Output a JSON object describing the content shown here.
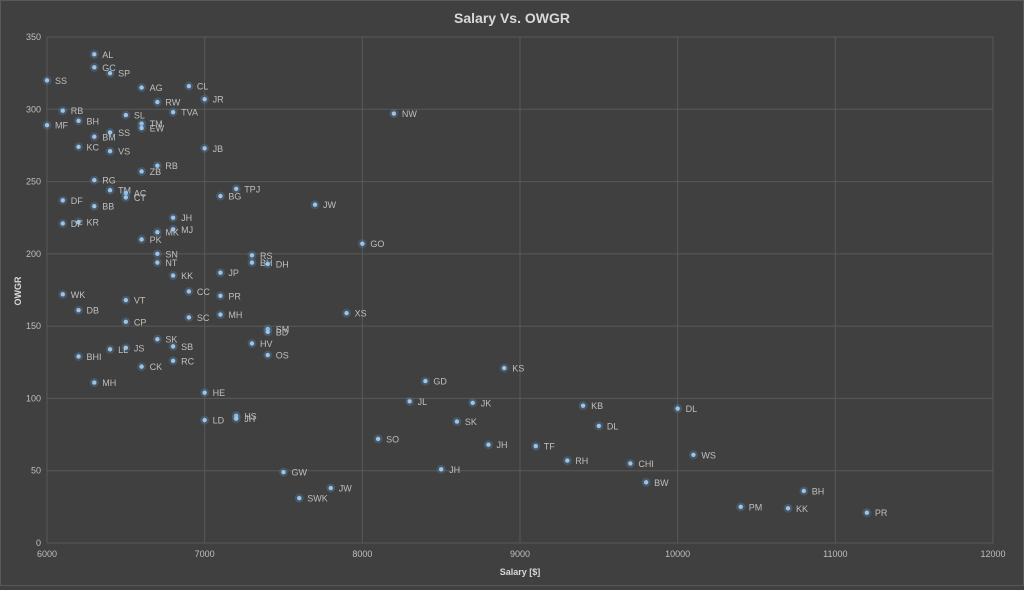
{
  "chart_data": {
    "type": "scatter",
    "title": "Salary Vs. OWGR",
    "xlabel": "Salary [$]",
    "ylabel": "OWGR",
    "xlim": [
      6000,
      12000
    ],
    "ylim": [
      0,
      350
    ],
    "xticks": [
      6000,
      7000,
      8000,
      9000,
      10000,
      11000,
      12000
    ],
    "yticks": [
      0,
      50,
      100,
      150,
      200,
      250,
      300,
      350
    ],
    "grid": true,
    "marker_color": "#9dc3e6",
    "points": [
      {
        "label": "AL",
        "x": 6300,
        "y": 338
      },
      {
        "label": "GC",
        "x": 6300,
        "y": 329
      },
      {
        "label": "SP",
        "x": 6400,
        "y": 325
      },
      {
        "label": "SS",
        "x": 6000,
        "y": 320
      },
      {
        "label": "AG",
        "x": 6600,
        "y": 315
      },
      {
        "label": "CL",
        "x": 6900,
        "y": 316
      },
      {
        "label": "JR",
        "x": 7000,
        "y": 307
      },
      {
        "label": "RW",
        "x": 6700,
        "y": 305
      },
      {
        "label": "RB",
        "x": 6100,
        "y": 299
      },
      {
        "label": "TVA",
        "x": 6800,
        "y": 298
      },
      {
        "label": "NW",
        "x": 8200,
        "y": 297
      },
      {
        "label": "SL",
        "x": 6500,
        "y": 296
      },
      {
        "label": "BH",
        "x": 6200,
        "y": 292
      },
      {
        "label": "MF",
        "x": 6000,
        "y": 289
      },
      {
        "label": "TM",
        "x": 6600,
        "y": 290
      },
      {
        "label": "EW",
        "x": 6600,
        "y": 287
      },
      {
        "label": "SS",
        "x": 6400,
        "y": 284
      },
      {
        "label": "BM",
        "x": 6300,
        "y": 281
      },
      {
        "label": "KC",
        "x": 6200,
        "y": 274
      },
      {
        "label": "JB",
        "x": 7000,
        "y": 273
      },
      {
        "label": "VS",
        "x": 6400,
        "y": 271
      },
      {
        "label": "RB",
        "x": 6700,
        "y": 261
      },
      {
        "label": "ZB",
        "x": 6600,
        "y": 257
      },
      {
        "label": "RG",
        "x": 6300,
        "y": 251
      },
      {
        "label": "TPJ",
        "x": 7200,
        "y": 245
      },
      {
        "label": "TM",
        "x": 6400,
        "y": 244
      },
      {
        "label": "AC",
        "x": 6500,
        "y": 242
      },
      {
        "label": "BG",
        "x": 7100,
        "y": 240
      },
      {
        "label": "CT",
        "x": 6500,
        "y": 239
      },
      {
        "label": "DF",
        "x": 6100,
        "y": 237
      },
      {
        "label": "JW",
        "x": 7700,
        "y": 234
      },
      {
        "label": "BB",
        "x": 6300,
        "y": 233
      },
      {
        "label": "JH",
        "x": 6800,
        "y": 225
      },
      {
        "label": "KR",
        "x": 6200,
        "y": 222
      },
      {
        "label": "DF",
        "x": 6100,
        "y": 221
      },
      {
        "label": "MJ",
        "x": 6800,
        "y": 217
      },
      {
        "label": "MK",
        "x": 6700,
        "y": 215
      },
      {
        "label": "PK",
        "x": 6600,
        "y": 210
      },
      {
        "label": "GO",
        "x": 8000,
        "y": 207
      },
      {
        "label": "SN",
        "x": 6700,
        "y": 200
      },
      {
        "label": "RS",
        "x": 7300,
        "y": 199
      },
      {
        "label": "NT",
        "x": 6700,
        "y": 194
      },
      {
        "label": "BH",
        "x": 7300,
        "y": 194
      },
      {
        "label": "DH",
        "x": 7400,
        "y": 193
      },
      {
        "label": "JP",
        "x": 7100,
        "y": 187
      },
      {
        "label": "KK",
        "x": 6800,
        "y": 185
      },
      {
        "label": "WK",
        "x": 6100,
        "y": 172
      },
      {
        "label": "CC",
        "x": 6900,
        "y": 174
      },
      {
        "label": "PR",
        "x": 7100,
        "y": 171
      },
      {
        "label": "VT",
        "x": 6500,
        "y": 168
      },
      {
        "label": "DB",
        "x": 6200,
        "y": 161
      },
      {
        "label": "XS",
        "x": 7900,
        "y": 159
      },
      {
        "label": "MH",
        "x": 7100,
        "y": 158
      },
      {
        "label": "SC",
        "x": 6900,
        "y": 156
      },
      {
        "label": "CP",
        "x": 6500,
        "y": 153
      },
      {
        "label": "SM",
        "x": 7400,
        "y": 148
      },
      {
        "label": "BD",
        "x": 7400,
        "y": 146
      },
      {
        "label": "SK",
        "x": 6700,
        "y": 141
      },
      {
        "label": "HV",
        "x": 7300,
        "y": 138
      },
      {
        "label": "SB",
        "x": 6800,
        "y": 136
      },
      {
        "label": "JS",
        "x": 6500,
        "y": 135
      },
      {
        "label": "LL",
        "x": 6400,
        "y": 134
      },
      {
        "label": "OS",
        "x": 7400,
        "y": 130
      },
      {
        "label": "BHI",
        "x": 6200,
        "y": 129
      },
      {
        "label": "RC",
        "x": 6800,
        "y": 126
      },
      {
        "label": "CK",
        "x": 6600,
        "y": 122
      },
      {
        "label": "KS",
        "x": 8900,
        "y": 121
      },
      {
        "label": "GD",
        "x": 8400,
        "y": 112
      },
      {
        "label": "MH",
        "x": 6300,
        "y": 111
      },
      {
        "label": "HE",
        "x": 7000,
        "y": 104
      },
      {
        "label": "JL",
        "x": 8300,
        "y": 98
      },
      {
        "label": "JK",
        "x": 8700,
        "y": 97
      },
      {
        "label": "KB",
        "x": 9400,
        "y": 95
      },
      {
        "label": "DL",
        "x": 10000,
        "y": 93
      },
      {
        "label": "HS",
        "x": 7200,
        "y": 88
      },
      {
        "label": "JH",
        "x": 7200,
        "y": 86
      },
      {
        "label": "LD",
        "x": 7000,
        "y": 85
      },
      {
        "label": "SK",
        "x": 8600,
        "y": 84
      },
      {
        "label": "DL",
        "x": 9500,
        "y": 81
      },
      {
        "label": "SO",
        "x": 8100,
        "y": 72
      },
      {
        "label": "JH",
        "x": 8800,
        "y": 68
      },
      {
        "label": "TF",
        "x": 9100,
        "y": 67
      },
      {
        "label": "WS",
        "x": 10100,
        "y": 61
      },
      {
        "label": "RH",
        "x": 9300,
        "y": 57
      },
      {
        "label": "CHI",
        "x": 9700,
        "y": 55
      },
      {
        "label": "JH",
        "x": 8500,
        "y": 51
      },
      {
        "label": "GW",
        "x": 7500,
        "y": 49
      },
      {
        "label": "BW",
        "x": 9800,
        "y": 42
      },
      {
        "label": "JW",
        "x": 7800,
        "y": 38
      },
      {
        "label": "BH",
        "x": 10800,
        "y": 36
      },
      {
        "label": "SWK",
        "x": 7600,
        "y": 31
      },
      {
        "label": "PM",
        "x": 10400,
        "y": 25
      },
      {
        "label": "KK",
        "x": 10700,
        "y": 24
      },
      {
        "label": "PR",
        "x": 11200,
        "y": 21
      }
    ]
  }
}
